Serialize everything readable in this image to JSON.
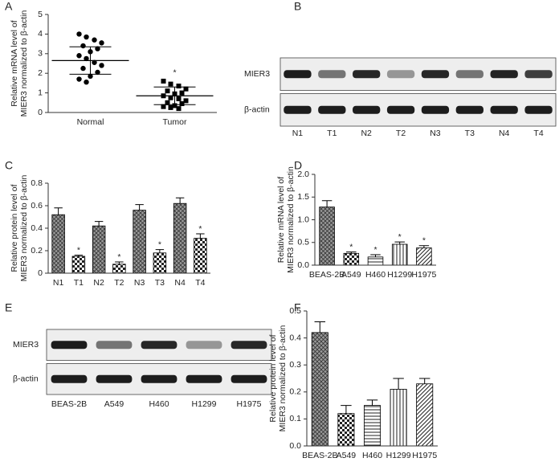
{
  "chart_data": [
    {
      "type": "scatter",
      "panel": "A",
      "ylabel": [
        "Relative mRNA level of",
        "MIER3 normalized to β-actin"
      ],
      "categories": [
        "Normal",
        "Tumor"
      ],
      "markers": [
        "circle",
        "square"
      ],
      "color": "#000000",
      "points": [
        [
          4.0,
          3.85,
          3.7,
          3.55,
          3.4,
          3.25,
          3.1,
          2.9,
          2.75,
          2.55,
          2.4,
          2.25,
          2.05,
          1.85,
          1.7,
          1.55
        ],
        [
          1.6,
          1.45,
          1.35,
          1.2,
          1.1,
          1.0,
          0.95,
          0.85,
          0.75,
          0.7,
          0.6,
          0.5,
          0.45,
          0.35,
          0.3,
          0.25,
          0.2
        ]
      ],
      "mean": [
        2.65,
        0.85
      ],
      "sd": [
        0.7,
        0.45
      ],
      "significance": [
        null,
        "*"
      ],
      "ylim": [
        0,
        5
      ],
      "yticks": [
        0,
        1,
        2,
        3,
        4,
        5
      ]
    },
    {
      "type": "blot",
      "panel": "B",
      "rows": [
        "MIER3",
        "β-actin"
      ],
      "lanes": [
        "N1",
        "T1",
        "N2",
        "T2",
        "N3",
        "T3",
        "N4",
        "T4"
      ]
    },
    {
      "type": "bar",
      "panel": "C",
      "ylabel": [
        "Relative protein level of",
        "MIER3 normalized to β-actin"
      ],
      "categories": [
        "N1",
        "T1",
        "N2",
        "T2",
        "N3",
        "T3",
        "N4",
        "T4"
      ],
      "values": [
        0.52,
        0.15,
        0.42,
        0.08,
        0.56,
        0.18,
        0.62,
        0.31
      ],
      "errors": [
        0.06,
        0.01,
        0.04,
        0.02,
        0.05,
        0.03,
        0.05,
        0.04
      ],
      "significance": [
        null,
        "*",
        null,
        "*",
        null,
        "*",
        null,
        "*"
      ],
      "fills": [
        "crosshatch",
        "checker",
        "crosshatch",
        "checker",
        "crosshatch",
        "checker",
        "crosshatch",
        "checker"
      ],
      "ylim": [
        0,
        0.8
      ],
      "yticks": [
        0,
        0.2,
        0.4,
        0.6,
        0.8
      ]
    },
    {
      "type": "bar",
      "panel": "D",
      "ylabel": [
        "Relative mRNA level of",
        "MIER3 normalized to β-actin"
      ],
      "categories": [
        "BEAS-2B",
        "A549",
        "H460",
        "H1299",
        "H1975"
      ],
      "values": [
        1.28,
        0.26,
        0.18,
        0.46,
        0.38
      ],
      "errors": [
        0.14,
        0.03,
        0.05,
        0.05,
        0.05
      ],
      "significance": [
        null,
        "*",
        "*",
        "*",
        "*"
      ],
      "fills": [
        "crosshatch",
        "checker",
        "hlines",
        "vlines",
        "diag"
      ],
      "ylim": [
        0,
        2.0
      ],
      "yticks": [
        {
          "value": 0,
          "label": "0.0"
        },
        0.5,
        {
          "value": 1,
          "label": "1.0"
        },
        1.5,
        {
          "value": 2,
          "label": "2.0"
        }
      ]
    },
    {
      "type": "blot",
      "panel": "E",
      "rows": [
        "MIER3",
        "β-actin"
      ],
      "lanes": [
        "BEAS-2B",
        "A549",
        "H460",
        "H1299",
        "H1975"
      ]
    },
    {
      "type": "bar",
      "panel": "F",
      "ylabel": [
        "Relative protein level of",
        "MIER3 normalized to β-actin"
      ],
      "categories": [
        "BEAS-2B",
        "A549",
        "H460",
        "H1299",
        "H1975"
      ],
      "values": [
        0.42,
        0.12,
        0.15,
        0.21,
        0.23
      ],
      "errors": [
        0.04,
        0.03,
        0.02,
        0.04,
        0.02
      ],
      "fills": [
        "crosshatch",
        "checker",
        "hlines",
        "vlines",
        "diag"
      ],
      "ylim": [
        0,
        0.5
      ],
      "yticks": [
        {
          "value": 0,
          "label": "0.0"
        },
        0.1,
        0.2,
        0.3,
        0.4,
        0.5
      ]
    }
  ]
}
